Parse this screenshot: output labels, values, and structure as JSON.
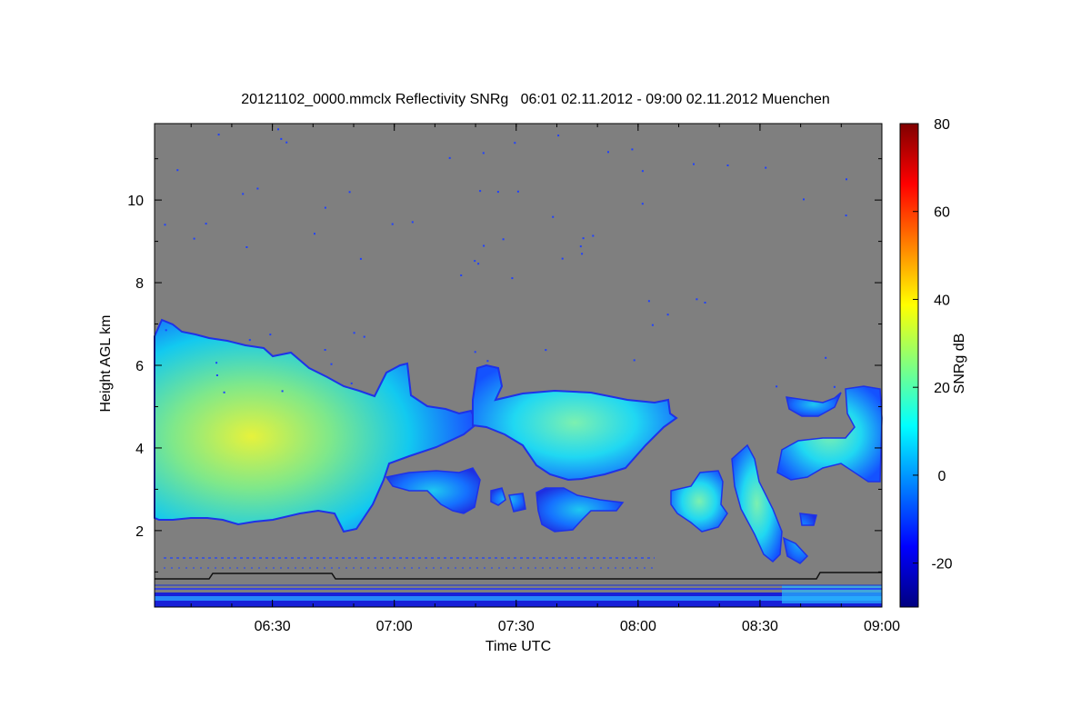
{
  "chart_data": {
    "type": "heatmap",
    "title": "20121102_0000.mmclx Reflectivity SNRg   06:01 02.11.2012 - 09:00 02.11.2012 Muenchen",
    "xlabel": "Time UTC",
    "ylabel": "Height AGL km",
    "x_range": [
      "06:01",
      "09:00"
    ],
    "x_ticks": [
      "06:30",
      "07:00",
      "07:30",
      "08:00",
      "08:30",
      "09:00"
    ],
    "y_range": [
      0.15,
      11.85
    ],
    "y_ticks": [
      2,
      4,
      6,
      8,
      10
    ],
    "background_color": "#7f7f7f",
    "colorbar": {
      "label": "SNRg dB",
      "range": [
        -30,
        80
      ],
      "ticks": [
        -20,
        0,
        20,
        40,
        60,
        80
      ],
      "colormap": [
        "#000080",
        "#0000ff",
        "#0080ff",
        "#00ffff",
        "#80ff80",
        "#ffff00",
        "#ff8000",
        "#ff0000",
        "#800000"
      ]
    },
    "features": [
      {
        "name": "main-cloud",
        "time_start": "06:01",
        "time_end": "07:18",
        "base_km": 2.2,
        "top_km": 7.0,
        "peak_snr_db": 35
      },
      {
        "name": "cloud-band",
        "time_start": "07:18",
        "time_end": "08:10",
        "base_km": 3.3,
        "top_km": 5.4,
        "peak_snr_db": 18
      },
      {
        "name": "lower-patches",
        "time_start": "06:59",
        "time_end": "07:57",
        "base_km": 1.9,
        "top_km": 3.3,
        "peak_snr_db": 10
      },
      {
        "name": "falling-streak",
        "time_start": "08:10",
        "time_end": "08:43",
        "base_km": 1.2,
        "top_km": 3.8,
        "peak_snr_db": 12
      },
      {
        "name": "right-cloud",
        "time_start": "08:35",
        "time_end": "09:00",
        "base_km": 2.7,
        "top_km": 5.5,
        "peak_snr_db": 15
      },
      {
        "name": "ground-clutter",
        "time_start": "06:01",
        "time_end": "09:00",
        "base_km": 0.15,
        "top_km": 0.6,
        "peak_snr_db": 5
      }
    ]
  }
}
